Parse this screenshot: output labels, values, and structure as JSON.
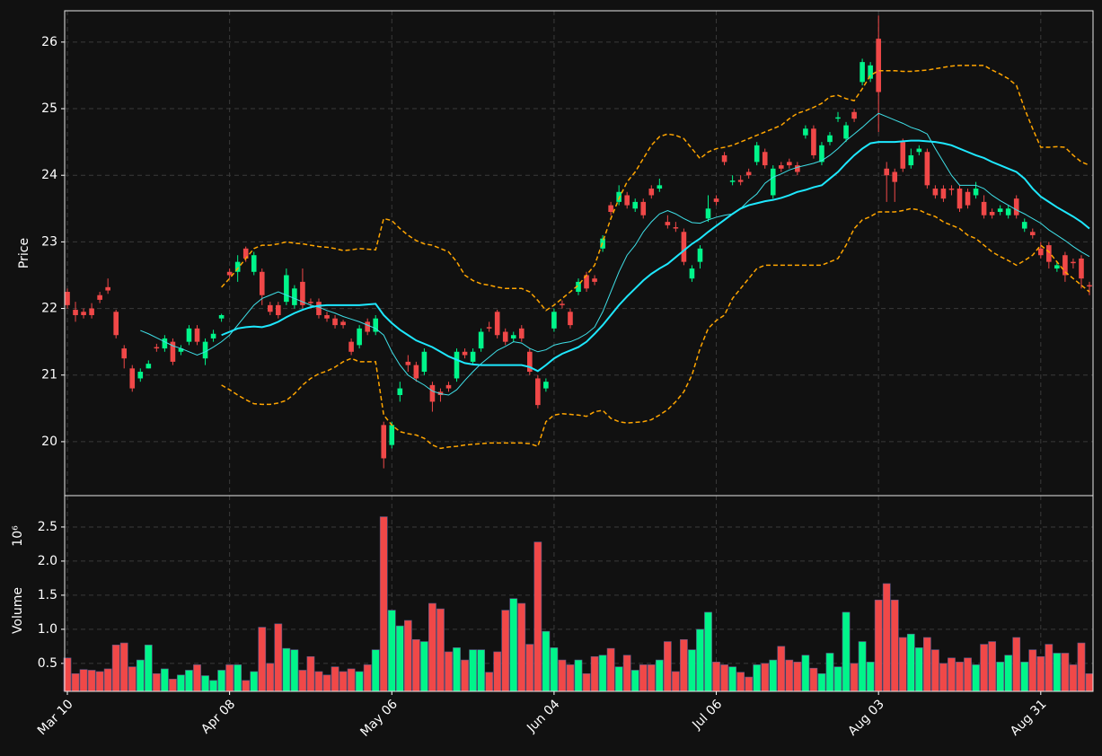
{
  "chart_data": {
    "type": "candlestick",
    "ylabel": "Price",
    "ylim": [
      19.19,
      26.47
    ],
    "yticks": [
      20,
      21,
      22,
      23,
      24,
      25,
      26
    ],
    "grid": true,
    "up_color": "#00f58a",
    "down_color": "#f04848",
    "categories": [
      "Mar 10",
      null,
      null,
      null,
      null,
      null,
      null,
      null,
      null,
      null,
      null,
      null,
      null,
      null,
      null,
      null,
      null,
      null,
      null,
      null,
      "Apr 08",
      null,
      null,
      null,
      null,
      null,
      null,
      null,
      null,
      null,
      null,
      null,
      null,
      null,
      null,
      null,
      null,
      null,
      null,
      null,
      "May 06",
      null,
      null,
      null,
      null,
      null,
      null,
      null,
      null,
      null,
      null,
      null,
      null,
      null,
      null,
      null,
      null,
      null,
      null,
      null,
      "Jun 04",
      null,
      null,
      null,
      null,
      null,
      null,
      null,
      null,
      null,
      null,
      null,
      null,
      null,
      null,
      null,
      null,
      null,
      null,
      null,
      "Jul 06",
      null,
      null,
      null,
      null,
      null,
      null,
      null,
      null,
      null,
      null,
      null,
      null,
      null,
      null,
      null,
      null,
      null,
      null,
      null,
      "Aug 03",
      null,
      null,
      null,
      null,
      null,
      null,
      null,
      null,
      null,
      null,
      null,
      null,
      null,
      null,
      null,
      null,
      null,
      null,
      null,
      "Aug 31",
      null,
      null,
      null,
      null,
      null,
      null
    ],
    "open": [
      22.25,
      21.98,
      21.95,
      22.0,
      22.2,
      22.32,
      21.95,
      21.4,
      21.1,
      20.95,
      21.1,
      21.42,
      21.4,
      21.5,
      21.35,
      21.5,
      21.7,
      21.25,
      21.55,
      21.85,
      22.55,
      22.55,
      22.9,
      22.55,
      22.55,
      22.05,
      22.05,
      22.1,
      22.05,
      22.4,
      22.1,
      22.1,
      21.9,
      21.85,
      21.8,
      21.5,
      21.45,
      21.8,
      21.65,
      20.25,
      19.95,
      20.7,
      21.2,
      21.15,
      21.05,
      20.85,
      20.75,
      20.85,
      20.95,
      21.35,
      21.2,
      21.4,
      21.72,
      21.95,
      21.65,
      21.55,
      21.7,
      21.35,
      20.95,
      20.8,
      21.7,
      22.07,
      21.95,
      22.25,
      22.5,
      22.45,
      22.9,
      23.55,
      23.6,
      23.7,
      23.5,
      23.6,
      23.8,
      23.8,
      23.3,
      23.22,
      23.15,
      22.45,
      22.7,
      23.35,
      23.65,
      24.3,
      23.9,
      23.93,
      24.05,
      24.2,
      24.35,
      23.7,
      24.15,
      24.2,
      24.15,
      24.6,
      24.7,
      24.2,
      24.5,
      24.85,
      24.55,
      24.95,
      25.4,
      25.45,
      26.05,
      24.1,
      24.05,
      24.5,
      24.15,
      24.35,
      24.35,
      23.8,
      23.8,
      23.8,
      23.8,
      23.75,
      23.7,
      23.6,
      23.45,
      23.45,
      23.4,
      23.65,
      23.2,
      23.15,
      22.9,
      22.95,
      22.6,
      22.8,
      22.7,
      22.75,
      22.35
    ],
    "high": [
      22.3,
      22.1,
      22.0,
      22.08,
      22.25,
      22.45,
      21.98,
      21.45,
      21.15,
      21.1,
      21.22,
      21.47,
      21.6,
      21.55,
      21.45,
      21.75,
      21.75,
      21.55,
      21.68,
      21.92,
      22.6,
      22.8,
      22.93,
      22.85,
      22.6,
      22.1,
      22.1,
      22.6,
      22.35,
      22.6,
      22.15,
      22.15,
      21.95,
      21.9,
      21.83,
      21.55,
      21.75,
      21.85,
      21.9,
      20.3,
      20.3,
      20.9,
      21.3,
      21.2,
      21.4,
      20.9,
      20.8,
      20.9,
      21.4,
      21.4,
      21.4,
      21.7,
      21.8,
      21.98,
      21.7,
      21.65,
      21.75,
      21.4,
      21.0,
      20.95,
      22.0,
      22.12,
      22.0,
      22.45,
      22.55,
      22.5,
      23.1,
      23.6,
      23.85,
      23.75,
      23.65,
      23.65,
      23.85,
      23.95,
      23.4,
      23.3,
      23.2,
      22.65,
      22.95,
      23.7,
      23.7,
      24.35,
      24.0,
      24.0,
      24.1,
      24.5,
      24.4,
      24.15,
      24.2,
      24.25,
      24.2,
      24.75,
      24.75,
      24.5,
      24.65,
      24.95,
      24.8,
      25.0,
      25.75,
      25.7,
      26.4,
      24.2,
      24.1,
      24.55,
      24.4,
      24.45,
      24.4,
      23.85,
      23.85,
      23.85,
      23.85,
      23.8,
      23.9,
      23.7,
      23.5,
      23.55,
      23.55,
      23.7,
      23.35,
      23.2,
      23.0,
      23.0,
      22.7,
      22.85,
      22.75,
      22.8,
      22.4
    ],
    "low": [
      22.0,
      21.8,
      21.85,
      21.85,
      22.08,
      22.22,
      21.55,
      21.1,
      20.75,
      20.9,
      21.1,
      21.35,
      21.35,
      21.15,
      21.3,
      21.45,
      21.45,
      21.15,
      21.5,
      21.8,
      22.45,
      22.4,
      22.7,
      22.5,
      22.05,
      21.9,
      21.85,
      22.05,
      22.0,
      22.0,
      22.0,
      21.85,
      21.8,
      21.7,
      21.7,
      21.3,
      21.4,
      21.6,
      21.6,
      19.6,
      19.9,
      20.6,
      21.05,
      20.9,
      21.0,
      20.45,
      20.6,
      20.75,
      20.9,
      21.25,
      21.15,
      21.35,
      21.65,
      21.55,
      21.45,
      21.5,
      21.5,
      21.0,
      20.5,
      20.75,
      21.65,
      22.0,
      21.7,
      22.2,
      22.25,
      22.35,
      22.85,
      23.4,
      23.55,
      23.5,
      23.45,
      23.35,
      23.65,
      23.75,
      23.2,
      23.15,
      22.65,
      22.4,
      22.6,
      23.3,
      23.55,
      24.15,
      23.85,
      23.85,
      23.95,
      24.15,
      24.1,
      23.65,
      24.05,
      24.1,
      24.0,
      24.55,
      24.25,
      24.15,
      24.45,
      24.8,
      24.5,
      24.8,
      25.35,
      25.4,
      24.65,
      23.6,
      23.6,
      24.05,
      24.1,
      24.3,
      23.8,
      23.65,
      23.6,
      23.7,
      23.45,
      23.5,
      23.65,
      23.35,
      23.35,
      23.4,
      23.35,
      23.35,
      23.15,
      23.05,
      22.75,
      22.6,
      22.55,
      22.4,
      22.6,
      22.3,
      22.2
    ],
    "close": [
      22.05,
      21.9,
      21.9,
      21.9,
      22.13,
      22.27,
      21.6,
      21.25,
      20.8,
      21.05,
      21.17,
      21.4,
      21.55,
      21.2,
      21.4,
      21.7,
      21.5,
      21.5,
      21.62,
      21.9,
      22.5,
      22.7,
      22.75,
      22.8,
      22.2,
      21.95,
      21.9,
      22.5,
      22.3,
      22.05,
      22.08,
      21.9,
      21.85,
      21.75,
      21.75,
      21.35,
      21.7,
      21.65,
      21.85,
      19.75,
      20.25,
      20.8,
      21.15,
      20.95,
      21.35,
      20.6,
      20.7,
      20.8,
      21.35,
      21.3,
      21.35,
      21.65,
      21.7,
      21.6,
      21.5,
      21.6,
      21.55,
      21.05,
      20.55,
      20.9,
      21.95,
      22.05,
      21.75,
      22.4,
      22.3,
      22.4,
      23.05,
      23.45,
      23.75,
      23.55,
      23.6,
      23.4,
      23.7,
      23.85,
      23.25,
      23.2,
      22.7,
      22.6,
      22.9,
      23.5,
      23.6,
      24.2,
      23.92,
      23.9,
      24.0,
      24.45,
      24.15,
      24.1,
      24.1,
      24.15,
      24.05,
      24.7,
      24.3,
      24.45,
      24.6,
      24.87,
      24.75,
      24.85,
      25.7,
      25.65,
      25.25,
      24.0,
      23.9,
      24.1,
      24.3,
      24.4,
      23.85,
      23.7,
      23.65,
      23.78,
      23.5,
      23.55,
      23.8,
      23.4,
      23.4,
      23.5,
      23.5,
      23.4,
      23.3,
      23.1,
      22.8,
      22.7,
      22.65,
      22.5,
      22.68,
      22.45,
      22.33
    ],
    "overlays": [
      {
        "color": "#3fe0e8",
        "width": 1,
        "dash": false,
        "values": [
          null,
          null,
          null,
          null,
          null,
          null,
          null,
          null,
          null,
          21.67,
          21.62,
          21.56,
          21.5,
          21.44,
          21.4,
          21.35,
          21.3,
          21.35,
          21.42,
          21.5,
          21.6,
          21.75,
          21.9,
          22.05,
          22.15,
          22.2,
          22.25,
          22.2,
          22.15,
          22.1,
          22.05,
          22.02,
          21.97,
          21.93,
          21.88,
          21.84,
          21.8,
          21.75,
          21.7,
          21.6,
          21.35,
          21.15,
          21.0,
          20.92,
          20.85,
          20.76,
          20.72,
          20.7,
          20.78,
          20.92,
          21.05,
          21.17,
          21.27,
          21.37,
          21.43,
          21.5,
          21.48,
          21.4,
          21.35,
          21.38,
          21.45,
          21.48,
          21.5,
          21.55,
          21.62,
          21.72,
          21.95,
          22.25,
          22.55,
          22.8,
          22.95,
          23.15,
          23.3,
          23.42,
          23.47,
          23.42,
          23.35,
          23.29,
          23.28,
          23.33,
          23.37,
          23.4,
          23.42,
          23.5,
          23.62,
          23.72,
          23.88,
          23.97,
          24.02,
          24.08,
          24.12,
          24.15,
          24.18,
          24.22,
          24.3,
          24.4,
          24.52,
          24.62,
          24.72,
          24.83,
          24.93,
          24.88,
          24.83,
          24.78,
          24.72,
          24.68,
          24.62,
          24.4,
          24.2,
          24.0,
          23.85,
          23.85,
          23.85,
          23.8,
          23.7,
          23.62,
          23.55,
          23.48,
          23.42,
          23.35,
          23.28,
          23.18,
          23.1,
          23.02,
          22.93,
          22.85,
          22.78
        ]
      },
      {
        "color": "#1ee8ff",
        "width": 2,
        "dash": false,
        "values": [
          null,
          null,
          null,
          null,
          null,
          null,
          null,
          null,
          null,
          null,
          null,
          null,
          null,
          null,
          null,
          null,
          null,
          null,
          null,
          21.6,
          21.65,
          21.7,
          21.72,
          21.73,
          21.72,
          21.75,
          21.8,
          21.87,
          21.93,
          21.98,
          22.02,
          22.04,
          22.05,
          22.05,
          22.05,
          22.05,
          22.05,
          22.06,
          22.07,
          21.9,
          21.78,
          21.68,
          21.6,
          21.52,
          21.47,
          21.42,
          21.35,
          21.28,
          21.23,
          21.18,
          21.16,
          21.15,
          21.15,
          21.15,
          21.15,
          21.15,
          21.15,
          21.12,
          21.06,
          21.15,
          21.25,
          21.32,
          21.37,
          21.42,
          21.5,
          21.62,
          21.75,
          21.9,
          22.05,
          22.18,
          22.3,
          22.42,
          22.52,
          22.6,
          22.67,
          22.77,
          22.87,
          22.97,
          23.05,
          23.15,
          23.24,
          23.33,
          23.42,
          23.5,
          23.55,
          23.58,
          23.61,
          23.63,
          23.66,
          23.7,
          23.75,
          23.78,
          23.82,
          23.85,
          23.95,
          24.05,
          24.18,
          24.3,
          24.4,
          24.48,
          24.5,
          24.5,
          24.5,
          24.51,
          24.52,
          24.52,
          24.51,
          24.5,
          24.48,
          24.45,
          24.4,
          24.35,
          24.3,
          24.26,
          24.2,
          24.15,
          24.1,
          24.05,
          23.95,
          23.8,
          23.68,
          23.6,
          23.52,
          23.45,
          23.38,
          23.3,
          23.2
        ]
      },
      {
        "color": "#ffa500",
        "width": 1.5,
        "dash": true,
        "values": [
          null,
          null,
          null,
          null,
          null,
          null,
          null,
          null,
          null,
          null,
          null,
          null,
          null,
          null,
          null,
          null,
          null,
          null,
          null,
          22.32,
          22.45,
          22.6,
          22.75,
          22.9,
          22.95,
          22.95,
          22.97,
          23.0,
          22.98,
          22.97,
          22.95,
          22.93,
          22.92,
          22.9,
          22.87,
          22.88,
          22.9,
          22.89,
          22.88,
          23.35,
          23.32,
          23.2,
          23.1,
          23.02,
          22.97,
          22.95,
          22.9,
          22.85,
          22.7,
          22.5,
          22.42,
          22.37,
          22.35,
          22.32,
          22.3,
          22.3,
          22.3,
          22.25,
          22.12,
          21.97,
          22.05,
          22.15,
          22.25,
          22.35,
          22.5,
          22.65,
          23.0,
          23.35,
          23.65,
          23.9,
          24.05,
          24.25,
          24.45,
          24.58,
          24.62,
          24.6,
          24.55,
          24.4,
          24.25,
          24.35,
          24.4,
          24.42,
          24.45,
          24.5,
          24.55,
          24.6,
          24.65,
          24.7,
          24.75,
          24.85,
          24.93,
          24.97,
          25.02,
          25.08,
          25.18,
          25.2,
          25.15,
          25.12,
          25.3,
          25.5,
          25.57,
          25.57,
          25.57,
          25.56,
          25.56,
          25.57,
          25.58,
          25.6,
          25.62,
          25.64,
          25.65,
          25.65,
          25.65,
          25.65,
          25.58,
          25.52,
          25.45,
          25.35,
          25.0,
          24.7,
          24.42,
          24.42,
          24.43,
          24.42,
          24.3,
          24.2,
          24.15
        ]
      },
      {
        "color": "#ffa500",
        "width": 1.5,
        "dash": true,
        "values": [
          null,
          null,
          null,
          null,
          null,
          null,
          null,
          null,
          null,
          null,
          null,
          null,
          null,
          null,
          null,
          null,
          null,
          null,
          null,
          20.85,
          20.78,
          20.7,
          20.63,
          20.57,
          20.56,
          20.56,
          20.58,
          20.62,
          20.72,
          20.85,
          20.95,
          21.02,
          21.06,
          21.12,
          21.2,
          21.25,
          21.2,
          21.2,
          21.2,
          20.4,
          20.25,
          20.15,
          20.12,
          20.1,
          20.05,
          19.95,
          19.9,
          19.92,
          19.93,
          19.95,
          19.96,
          19.97,
          19.98,
          19.98,
          19.98,
          19.98,
          19.98,
          19.97,
          19.93,
          20.3,
          20.4,
          20.42,
          20.41,
          20.4,
          20.38,
          20.45,
          20.47,
          20.35,
          20.3,
          20.28,
          20.29,
          20.3,
          20.33,
          20.4,
          20.48,
          20.6,
          20.75,
          21.0,
          21.4,
          21.7,
          21.82,
          21.9,
          22.15,
          22.3,
          22.45,
          22.6,
          22.65,
          22.65,
          22.65,
          22.65,
          22.65,
          22.65,
          22.65,
          22.65,
          22.7,
          22.75,
          22.95,
          23.2,
          23.33,
          23.38,
          23.45,
          23.45,
          23.45,
          23.47,
          23.5,
          23.48,
          23.42,
          23.38,
          23.3,
          23.25,
          23.2,
          23.1,
          23.05,
          22.95,
          22.85,
          22.78,
          22.72,
          22.65,
          22.72,
          22.8,
          22.95,
          22.85,
          22.7,
          22.55,
          22.45,
          22.35,
          22.25
        ]
      }
    ],
    "volume": {
      "ylabel": "Volume",
      "offset_label": "10⁶",
      "ylim": [
        0.09,
        2.96
      ],
      "yticks": [
        0.5,
        {
          "value": 1,
          "label": "1.0"
        },
        1.5,
        {
          "value": 2,
          "label": "2.0"
        },
        2.5
      ],
      "values": [
        0.58,
        0.35,
        0.41,
        0.4,
        0.38,
        0.42,
        0.77,
        0.8,
        0.45,
        0.55,
        0.77,
        0.35,
        0.42,
        0.27,
        0.33,
        0.4,
        0.48,
        0.32,
        0.25,
        0.4,
        0.48,
        0.48,
        0.25,
        0.38,
        1.03,
        0.5,
        1.08,
        0.72,
        0.7,
        0.4,
        0.6,
        0.38,
        0.33,
        0.45,
        0.38,
        0.42,
        0.38,
        0.48,
        0.7,
        2.65,
        1.28,
        1.05,
        1.13,
        0.85,
        0.82,
        1.38,
        1.3,
        0.67,
        0.73,
        0.55,
        0.7,
        0.7,
        0.37,
        0.67,
        1.28,
        1.45,
        1.38,
        0.78,
        2.28,
        0.97,
        0.73,
        0.55,
        0.48,
        0.55,
        0.35,
        0.6,
        0.62,
        0.72,
        0.45,
        0.62,
        0.4,
        0.48,
        0.48,
        0.55,
        0.82,
        0.38,
        0.85,
        0.7,
        1.0,
        1.25,
        0.52,
        0.48,
        0.45,
        0.37,
        0.3,
        0.48,
        0.5,
        0.55,
        0.75,
        0.55,
        0.52,
        0.62,
        0.43,
        0.35,
        0.65,
        0.45,
        1.25,
        0.5,
        0.82,
        0.52,
        1.43,
        1.67,
        1.43,
        0.88,
        0.93,
        0.73,
        0.88,
        0.7,
        0.5,
        0.58,
        0.52,
        0.58,
        0.48,
        0.78,
        0.82,
        0.52,
        0.62,
        0.88,
        0.52,
        0.7,
        0.6,
        0.78,
        0.65,
        0.65,
        0.48,
        0.8,
        0.35
      ]
    }
  }
}
